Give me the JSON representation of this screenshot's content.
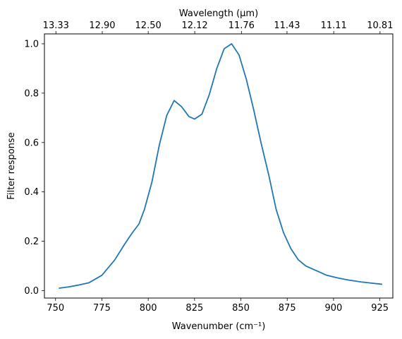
{
  "chart_data": {
    "type": "line",
    "xlabel": "Wavenumber (cm⁻¹)",
    "ylabel": "Filter response",
    "top_xlabel": "Wavelength (μm)",
    "xlim": [
      744,
      932
    ],
    "ylim": [
      -0.03,
      1.04
    ],
    "x_ticks": [
      750,
      775,
      800,
      825,
      850,
      875,
      900,
      925
    ],
    "y_ticks": [
      0.0,
      0.2,
      0.4,
      0.6,
      0.8,
      1.0
    ],
    "y_tick_labels": [
      "0.0",
      "0.2",
      "0.4",
      "0.6",
      "0.8",
      "1.0"
    ],
    "top_ticks": [
      {
        "label": "13.33",
        "wavenumber": 750.2
      },
      {
        "label": "12.90",
        "wavenumber": 775.2
      },
      {
        "label": "12.50",
        "wavenumber": 800.0
      },
      {
        "label": "12.12",
        "wavenumber": 825.1
      },
      {
        "label": "11.76",
        "wavenumber": 850.3
      },
      {
        "label": "11.43",
        "wavenumber": 874.9
      },
      {
        "label": "11.11",
        "wavenumber": 900.1
      },
      {
        "label": "10.81",
        "wavenumber": 925.1
      }
    ],
    "series": [
      {
        "color": "#1f77b4",
        "x": [
          752,
          757,
          762,
          768,
          775,
          782,
          787,
          791,
          795,
          798,
          802,
          806,
          810,
          814,
          818,
          822,
          825,
          829,
          833,
          837,
          841,
          845,
          849,
          853,
          857,
          861,
          865,
          869,
          873,
          877,
          881,
          885,
          891,
          896,
          902,
          908,
          915,
          921,
          926
        ],
        "y": [
          0.01,
          0.015,
          0.022,
          0.032,
          0.062,
          0.125,
          0.185,
          0.23,
          0.27,
          0.33,
          0.44,
          0.59,
          0.71,
          0.77,
          0.745,
          0.705,
          0.695,
          0.715,
          0.795,
          0.9,
          0.98,
          1.0,
          0.955,
          0.855,
          0.73,
          0.595,
          0.47,
          0.33,
          0.235,
          0.17,
          0.125,
          0.1,
          0.08,
          0.063,
          0.052,
          0.043,
          0.035,
          0.03,
          0.026
        ]
      }
    ]
  }
}
